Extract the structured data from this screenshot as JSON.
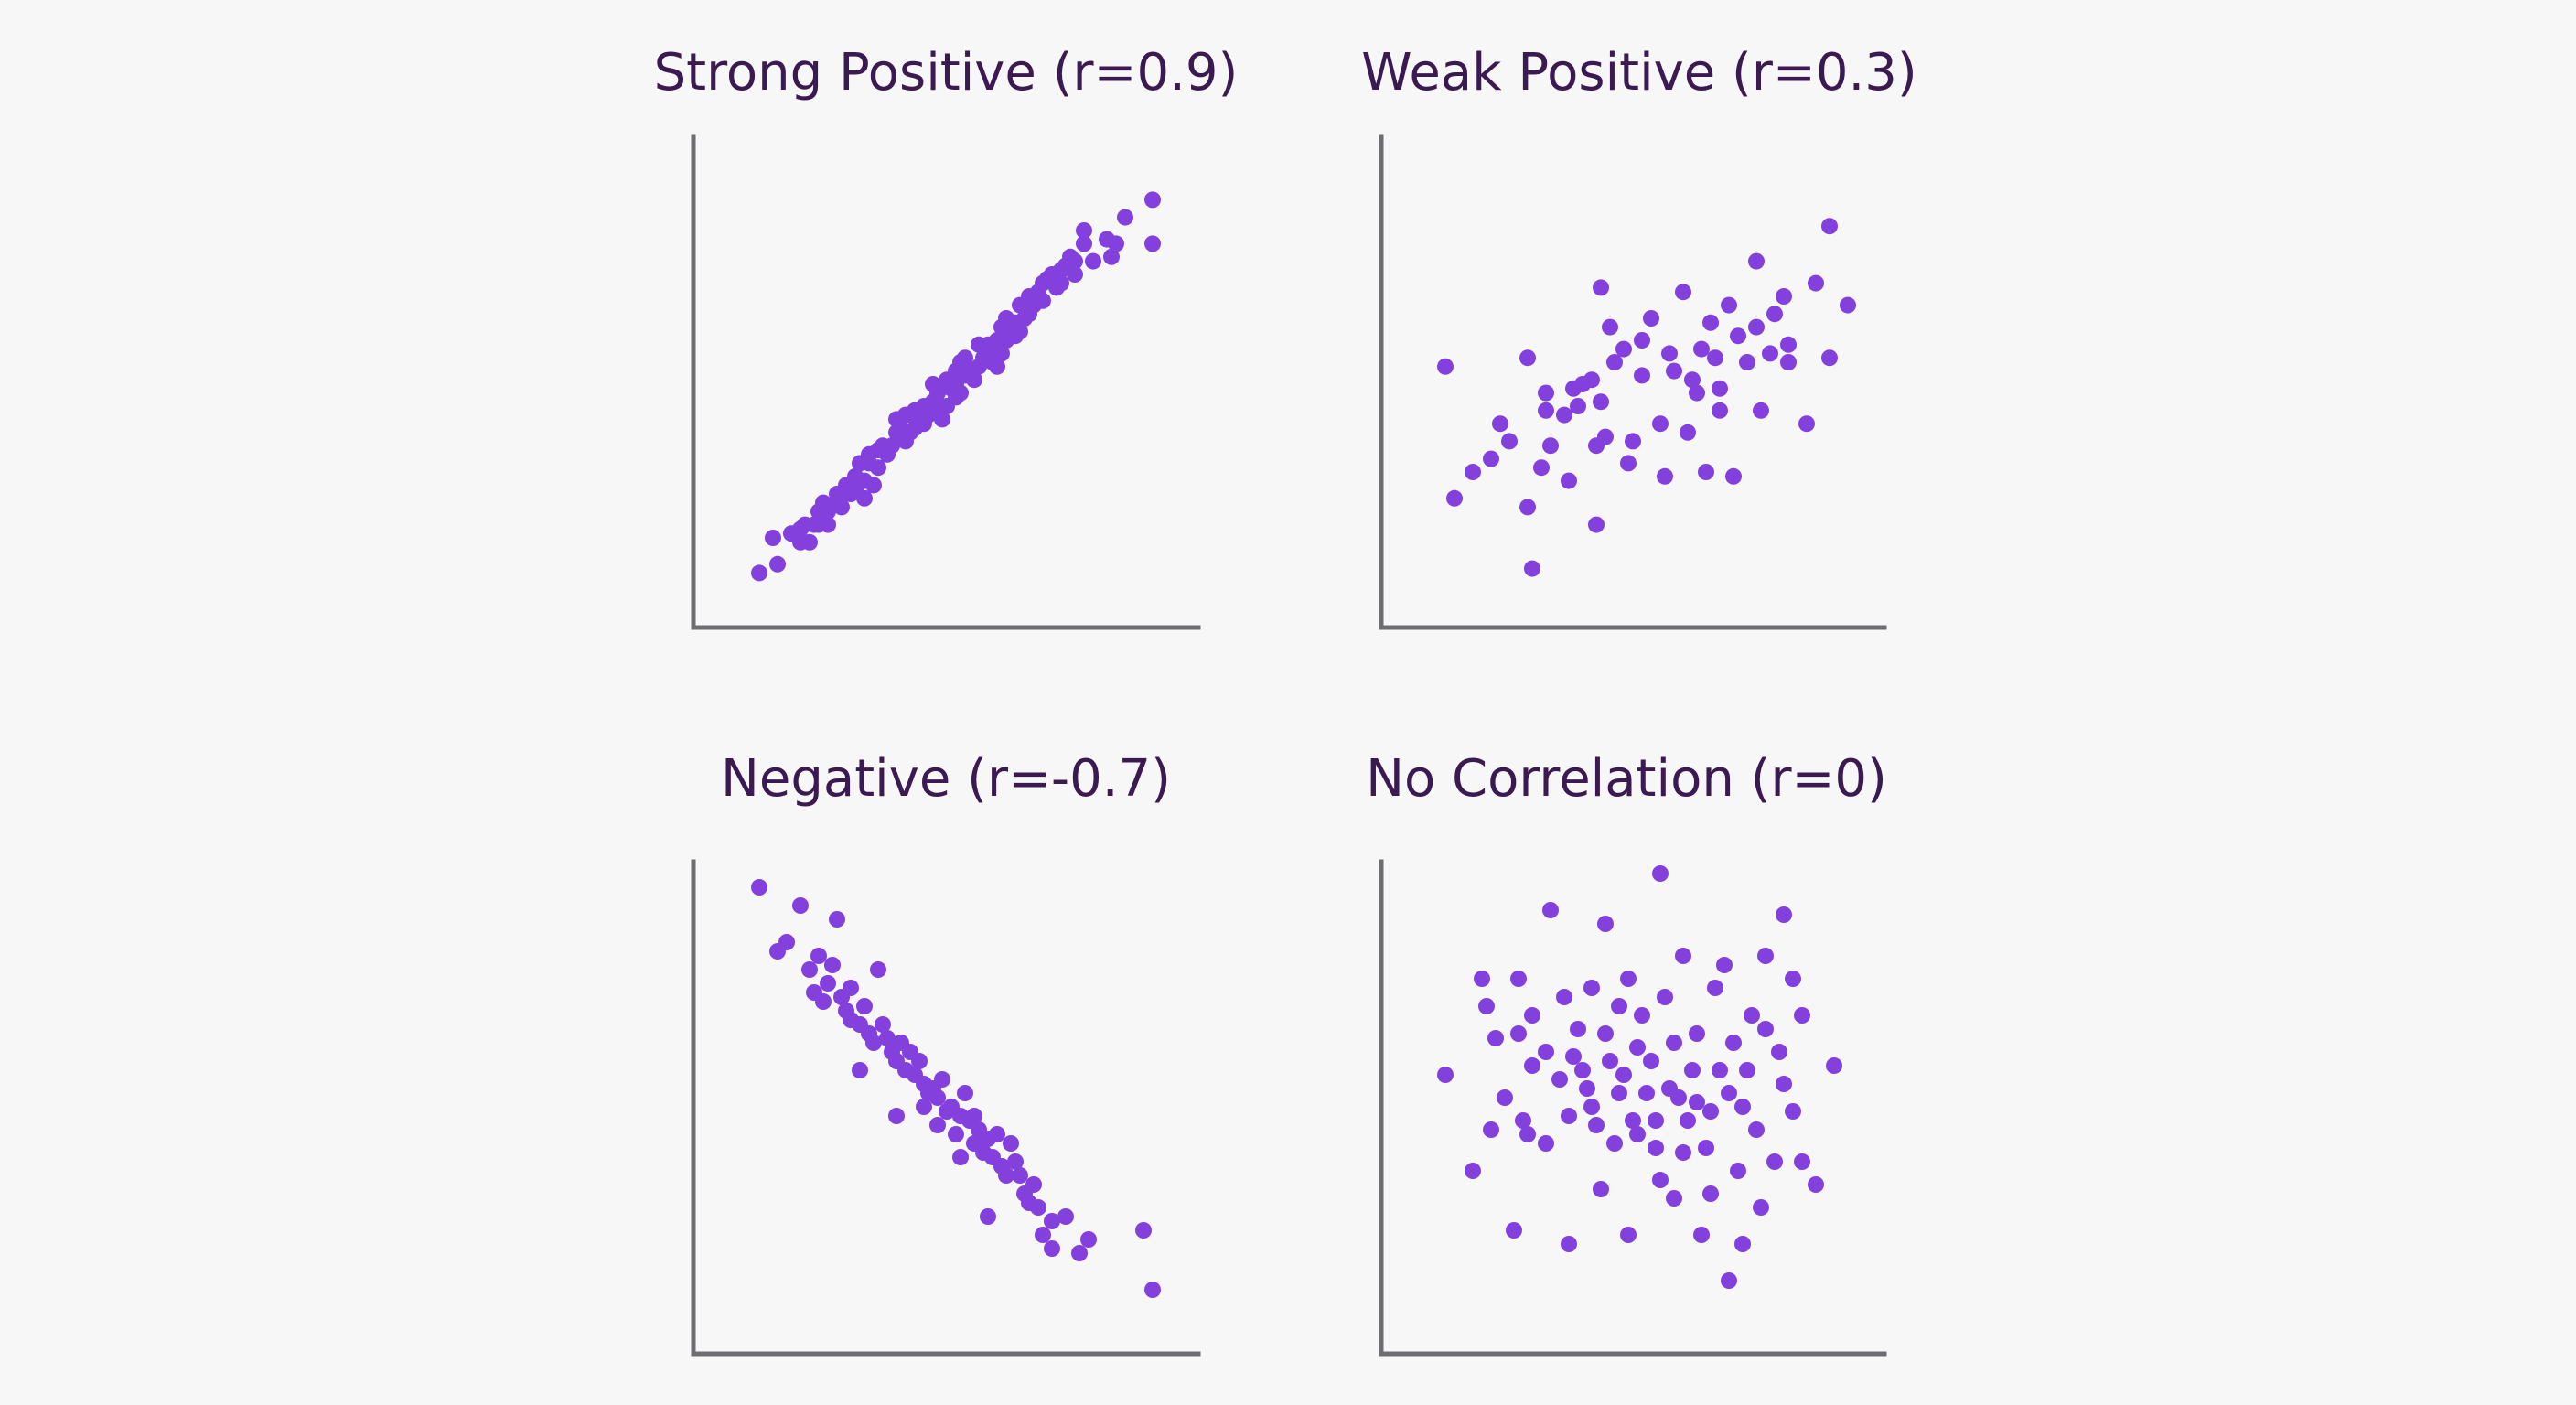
{
  "figure": {
    "background": "#f7f7f8",
    "point_color": "#8440dc",
    "title_color": "#3b1a52",
    "axis_color": "#6e6e72"
  },
  "chart_data": [
    {
      "type": "scatter",
      "title": "Strong Positive (r=0.9)",
      "xlabel": "",
      "ylabel": "",
      "xlim": [
        0,
        100
      ],
      "ylim": [
        0,
        100
      ],
      "grid": false,
      "axes_ticks": false,
      "points": [
        [
          8,
          7
        ],
        [
          12,
          9
        ],
        [
          11,
          15
        ],
        [
          15,
          16
        ],
        [
          17,
          17
        ],
        [
          19,
          14
        ],
        [
          17,
          14
        ],
        [
          18,
          18
        ],
        [
          20,
          18
        ],
        [
          21,
          18
        ],
        [
          23,
          18
        ],
        [
          21,
          21
        ],
        [
          22,
          23
        ],
        [
          23,
          21
        ],
        [
          25,
          23
        ],
        [
          26,
          22
        ],
        [
          25,
          25
        ],
        [
          28,
          25
        ],
        [
          27,
          27
        ],
        [
          29,
          28
        ],
        [
          29,
          29
        ],
        [
          31,
          28
        ],
        [
          29,
          26
        ],
        [
          31,
          24
        ],
        [
          33,
          27
        ],
        [
          30,
          32
        ],
        [
          32,
          32
        ],
        [
          34,
          31
        ],
        [
          32,
          34
        ],
        [
          34,
          35
        ],
        [
          35,
          36
        ],
        [
          36,
          34
        ],
        [
          37,
          36
        ],
        [
          38,
          39
        ],
        [
          39,
          40
        ],
        [
          40,
          37
        ],
        [
          38,
          42
        ],
        [
          40,
          43
        ],
        [
          41,
          39
        ],
        [
          42,
          40
        ],
        [
          43,
          42
        ],
        [
          44,
          41
        ],
        [
          42,
          44
        ],
        [
          44,
          45
        ],
        [
          45,
          43
        ],
        [
          46,
          46
        ],
        [
          47,
          44
        ],
        [
          47,
          48
        ],
        [
          46,
          50
        ],
        [
          49,
          45
        ],
        [
          48,
          42
        ],
        [
          50,
          49
        ],
        [
          49,
          51
        ],
        [
          51,
          50
        ],
        [
          51,
          47
        ],
        [
          52,
          48
        ],
        [
          53,
          52
        ],
        [
          51,
          53
        ],
        [
          52,
          55
        ],
        [
          54,
          53
        ],
        [
          55,
          51
        ],
        [
          53,
          56
        ],
        [
          56,
          54
        ],
        [
          57,
          56
        ],
        [
          56,
          59
        ],
        [
          58,
          59
        ],
        [
          59,
          58
        ],
        [
          59,
          55
        ],
        [
          60,
          54
        ],
        [
          61,
          57
        ],
        [
          60,
          60
        ],
        [
          62,
          60
        ],
        [
          63,
          62
        ],
        [
          61,
          63
        ],
        [
          62,
          65
        ],
        [
          64,
          64
        ],
        [
          65,
          62
        ],
        [
          64,
          61
        ],
        [
          66,
          65
        ],
        [
          67,
          66
        ],
        [
          65,
          68
        ],
        [
          68,
          68
        ],
        [
          67,
          70
        ],
        [
          69,
          71
        ],
        [
          70,
          69
        ],
        [
          70,
          73
        ],
        [
          71,
          74
        ],
        [
          72,
          75
        ],
        [
          73,
          72
        ],
        [
          74,
          76
        ],
        [
          75,
          77
        ],
        [
          74,
          73
        ],
        [
          76,
          79
        ],
        [
          77,
          78
        ],
        [
          77,
          75
        ],
        [
          79,
          82
        ],
        [
          79,
          85
        ],
        [
          84,
          83
        ],
        [
          86,
          82
        ],
        [
          85,
          79
        ],
        [
          81,
          78
        ],
        [
          88,
          88
        ],
        [
          94,
          92
        ],
        [
          94,
          82
        ]
      ]
    },
    {
      "type": "scatter",
      "title": "Weak Positive (r=0.3)",
      "xlabel": "",
      "ylabel": "",
      "xlim": [
        0,
        100
      ],
      "ylim": [
        0,
        100
      ],
      "grid": false,
      "axes_ticks": false,
      "points": [
        [
          8,
          54
        ],
        [
          10,
          24
        ],
        [
          14,
          30
        ],
        [
          18,
          33
        ],
        [
          20,
          41
        ],
        [
          22,
          37
        ],
        [
          26,
          56
        ],
        [
          26,
          22
        ],
        [
          27,
          8
        ],
        [
          29,
          31
        ],
        [
          30,
          44
        ],
        [
          31,
          36
        ],
        [
          30,
          48
        ],
        [
          34,
          43
        ],
        [
          35,
          28
        ],
        [
          37,
          45
        ],
        [
          36,
          49
        ],
        [
          38,
          50
        ],
        [
          40,
          51
        ],
        [
          41,
          18
        ],
        [
          42,
          46
        ],
        [
          41,
          36
        ],
        [
          43,
          38
        ],
        [
          42,
          72
        ],
        [
          44,
          63
        ],
        [
          47,
          58
        ],
        [
          45,
          55
        ],
        [
          48,
          32
        ],
        [
          49,
          37
        ],
        [
          51,
          52
        ],
        [
          53,
          65
        ],
        [
          51,
          60
        ],
        [
          55,
          41
        ],
        [
          57,
          57
        ],
        [
          56,
          29
        ],
        [
          58,
          53
        ],
        [
          60,
          71
        ],
        [
          61,
          39
        ],
        [
          63,
          48
        ],
        [
          62,
          51
        ],
        [
          64,
          58
        ],
        [
          65,
          30
        ],
        [
          66,
          64
        ],
        [
          67,
          56
        ],
        [
          68,
          49
        ],
        [
          68,
          44
        ],
        [
          70,
          68
        ],
        [
          72,
          61
        ],
        [
          71,
          29
        ],
        [
          74,
          55
        ],
        [
          76,
          63
        ],
        [
          76,
          78
        ],
        [
          77,
          44
        ],
        [
          79,
          57
        ],
        [
          80,
          66
        ],
        [
          82,
          70
        ],
        [
          83,
          59
        ],
        [
          83,
          55
        ],
        [
          87,
          41
        ],
        [
          89,
          73
        ],
        [
          92,
          56
        ],
        [
          92,
          86
        ],
        [
          96,
          68
        ]
      ]
    },
    {
      "type": "scatter",
      "title": "Negative (r=-0.7)",
      "xlabel": "",
      "ylabel": "",
      "xlim": [
        0,
        100
      ],
      "ylim": [
        0,
        100
      ],
      "grid": false,
      "axes_ticks": false,
      "points": [
        [
          8,
          96
        ],
        [
          12,
          82
        ],
        [
          14,
          84
        ],
        [
          17,
          92
        ],
        [
          19,
          78
        ],
        [
          20,
          73
        ],
        [
          21,
          81
        ],
        [
          22,
          71
        ],
        [
          23,
          75
        ],
        [
          24,
          79
        ],
        [
          25,
          89
        ],
        [
          26,
          72
        ],
        [
          27,
          69
        ],
        [
          28,
          74
        ],
        [
          28,
          67
        ],
        [
          30,
          66
        ],
        [
          30,
          56
        ],
        [
          31,
          70
        ],
        [
          32,
          64
        ],
        [
          33,
          62
        ],
        [
          34,
          78
        ],
        [
          35,
          66
        ],
        [
          36,
          63
        ],
        [
          37,
          60
        ],
        [
          38,
          58
        ],
        [
          38,
          46
        ],
        [
          39,
          62
        ],
        [
          40,
          56
        ],
        [
          41,
          60
        ],
        [
          42,
          55
        ],
        [
          43,
          58
        ],
        [
          44,
          53
        ],
        [
          45,
          51
        ],
        [
          46,
          52
        ],
        [
          44,
          48
        ],
        [
          47,
          50
        ],
        [
          47,
          44
        ],
        [
          48,
          54
        ],
        [
          49,
          47
        ],
        [
          50,
          48
        ],
        [
          51,
          42
        ],
        [
          52,
          46
        ],
        [
          52,
          37
        ],
        [
          53,
          51
        ],
        [
          54,
          45
        ],
        [
          55,
          46
        ],
        [
          55,
          40
        ],
        [
          56,
          43
        ],
        [
          57,
          38
        ],
        [
          58,
          41
        ],
        [
          58,
          24
        ],
        [
          59,
          37
        ],
        [
          60,
          42
        ],
        [
          61,
          35
        ],
        [
          62,
          33
        ],
        [
          63,
          40
        ],
        [
          64,
          36
        ],
        [
          65,
          33
        ],
        [
          66,
          29
        ],
        [
          67,
          27
        ],
        [
          68,
          31
        ],
        [
          69,
          26
        ],
        [
          70,
          20
        ],
        [
          72,
          23
        ],
        [
          72,
          17
        ],
        [
          75,
          24
        ],
        [
          78,
          16
        ],
        [
          80,
          19
        ],
        [
          92,
          21
        ],
        [
          94,
          8
        ]
      ]
    },
    {
      "type": "scatter",
      "title": "No Correlation (r=0)",
      "xlabel": "",
      "ylabel": "",
      "xlim": [
        0,
        100
      ],
      "ylim": [
        0,
        100
      ],
      "grid": false,
      "axes_ticks": false,
      "points": [
        [
          8,
          55
        ],
        [
          14,
          34
        ],
        [
          16,
          76
        ],
        [
          17,
          70
        ],
        [
          18,
          43
        ],
        [
          19,
          63
        ],
        [
          21,
          50
        ],
        [
          23,
          21
        ],
        [
          24,
          76
        ],
        [
          24,
          64
        ],
        [
          25,
          45
        ],
        [
          26,
          42
        ],
        [
          27,
          68
        ],
        [
          27,
          57
        ],
        [
          30,
          40
        ],
        [
          30,
          60
        ],
        [
          31,
          91
        ],
        [
          33,
          54
        ],
        [
          34,
          72
        ],
        [
          35,
          46
        ],
        [
          35,
          18
        ],
        [
          37,
          65
        ],
        [
          36,
          59
        ],
        [
          38,
          56
        ],
        [
          39,
          52
        ],
        [
          40,
          48
        ],
        [
          40,
          74
        ],
        [
          41,
          44
        ],
        [
          42,
          30
        ],
        [
          43,
          64
        ],
        [
          43,
          88
        ],
        [
          44,
          58
        ],
        [
          45,
          40
        ],
        [
          46,
          70
        ],
        [
          46,
          51
        ],
        [
          47,
          55
        ],
        [
          48,
          20
        ],
        [
          48,
          76
        ],
        [
          49,
          45
        ],
        [
          50,
          61
        ],
        [
          50,
          42
        ],
        [
          51,
          68
        ],
        [
          52,
          51
        ],
        [
          53,
          58
        ],
        [
          54,
          45
        ],
        [
          54,
          39
        ],
        [
          55,
          99
        ],
        [
          55,
          32
        ],
        [
          56,
          72
        ],
        [
          57,
          52
        ],
        [
          58,
          62
        ],
        [
          58,
          28
        ],
        [
          59,
          50
        ],
        [
          60,
          81
        ],
        [
          60,
          38
        ],
        [
          61,
          45
        ],
        [
          62,
          56
        ],
        [
          63,
          64
        ],
        [
          63,
          49
        ],
        [
          64,
          20
        ],
        [
          65,
          39
        ],
        [
          66,
          47
        ],
        [
          66,
          29
        ],
        [
          67,
          74
        ],
        [
          68,
          56
        ],
        [
          69,
          79
        ],
        [
          70,
          51
        ],
        [
          70,
          10
        ],
        [
          71,
          62
        ],
        [
          72,
          34
        ],
        [
          73,
          48
        ],
        [
          73,
          18
        ],
        [
          74,
          56
        ],
        [
          75,
          68
        ],
        [
          76,
          43
        ],
        [
          77,
          26
        ],
        [
          78,
          81
        ],
        [
          78,
          65
        ],
        [
          80,
          36
        ],
        [
          81,
          60
        ],
        [
          82,
          90
        ],
        [
          82,
          53
        ],
        [
          84,
          76
        ],
        [
          84,
          47
        ],
        [
          86,
          36
        ],
        [
          86,
          68
        ],
        [
          89,
          31
        ],
        [
          93,
          57
        ]
      ]
    }
  ]
}
